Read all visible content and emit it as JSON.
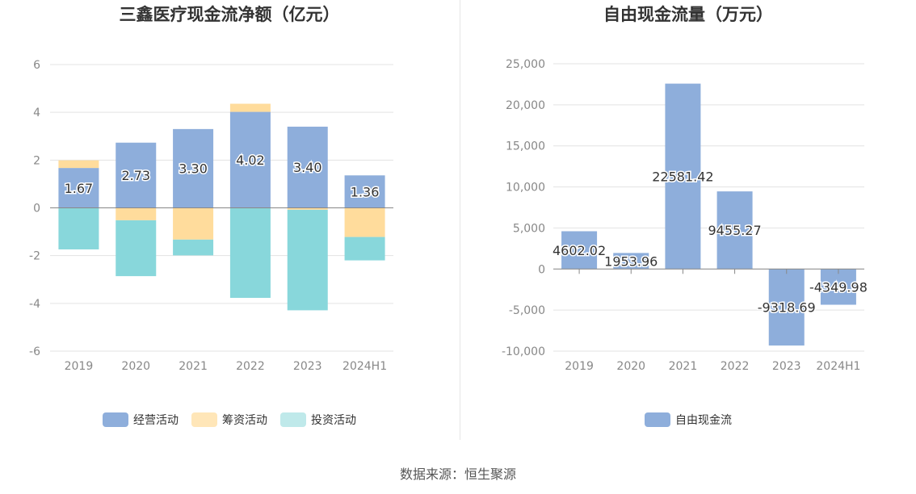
{
  "footer_text": "数据来源：恒生聚源",
  "colors": {
    "operating": "#8eaedb",
    "financing": "#ffdc9c",
    "investing": "#88d7db",
    "free_cash_flow": "#8eaedb"
  },
  "chart_data": [
    {
      "type": "bar",
      "stacked": true,
      "title": "三鑫医疗现金流净额（亿元）",
      "categories": [
        "2019",
        "2020",
        "2021",
        "2022",
        "2023",
        "2024H1"
      ],
      "ylim": [
        -6,
        6
      ],
      "yticks": [
        "6",
        "4",
        "2",
        "0",
        "-2",
        "-4",
        "-6"
      ],
      "ytick_values": [
        6,
        4,
        2,
        0,
        -2,
        -4,
        -6
      ],
      "grid": true,
      "legend_position": "bottom",
      "series": [
        {
          "name": "经营活动",
          "values": [
            1.67,
            2.73,
            3.3,
            4.02,
            3.4,
            1.36
          ],
          "labels": [
            "1.67",
            "2.73",
            "3.30",
            "4.02",
            "3.40",
            "1.36"
          ]
        },
        {
          "name": "筹资活动",
          "values": [
            0.32,
            -0.52,
            -1.33,
            0.34,
            -0.08,
            -1.22
          ]
        },
        {
          "name": "投资活动",
          "values": [
            -1.74,
            -2.34,
            -0.66,
            -3.77,
            -4.21,
            -0.98
          ]
        }
      ]
    },
    {
      "type": "bar",
      "title": "自由现金流量（万元）",
      "categories": [
        "2019",
        "2020",
        "2021",
        "2022",
        "2023",
        "2024H1"
      ],
      "ylim": [
        -10000,
        25000
      ],
      "yticks": [
        "25,000",
        "20,000",
        "15,000",
        "10,000",
        "5,000",
        "0",
        "-5,000",
        "-10,000"
      ],
      "ytick_values": [
        25000,
        20000,
        15000,
        10000,
        5000,
        0,
        -5000,
        -10000
      ],
      "grid": true,
      "legend_position": "bottom",
      "series": [
        {
          "name": "自由现金流",
          "values": [
            4602.02,
            1953.96,
            22581.42,
            9455.27,
            -9318.69,
            -4349.98
          ],
          "labels": [
            "4602.02",
            "1953.96",
            "22581.42",
            "9455.27",
            "-9318.69",
            "-4349.98"
          ]
        }
      ]
    }
  ]
}
